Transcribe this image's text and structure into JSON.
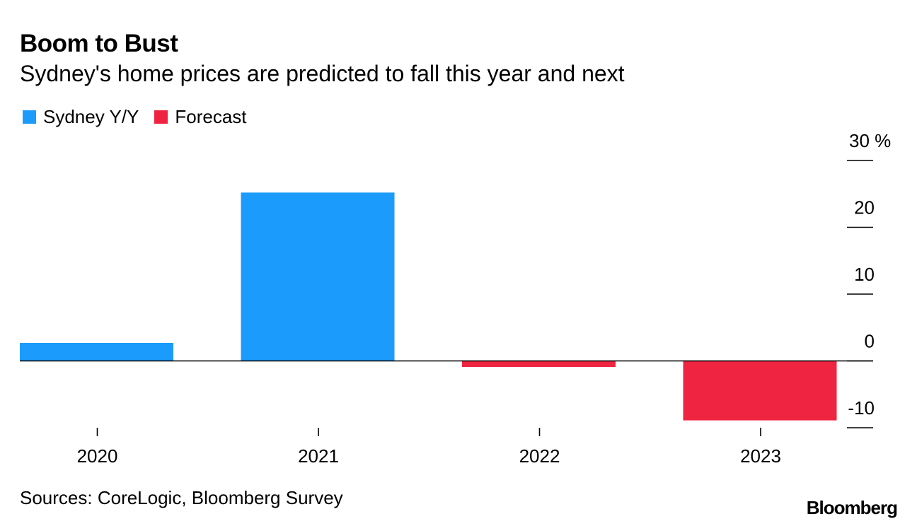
{
  "chart_data": {
    "type": "bar",
    "title": "Boom to Bust",
    "subtitle": "Sydney's home prices are predicted to fall this year and next",
    "categories": [
      "2020",
      "2021",
      "2022",
      "2023"
    ],
    "values": [
      2.7,
      25.2,
      -0.9,
      -8.9
    ],
    "bar_series": [
      "actual",
      "actual",
      "forecast",
      "forecast"
    ],
    "legend": [
      {
        "key": "actual",
        "label": "Sydney Y/Y",
        "color": "#1b9cfc"
      },
      {
        "key": "forecast",
        "label": "Forecast",
        "color": "#ee2440"
      }
    ],
    "legend_position": "top-left",
    "ylim": [
      -10,
      30
    ],
    "yticks": [
      30,
      20,
      10,
      0,
      -10
    ],
    "ytick_labels": [
      "30 %",
      "20",
      "10",
      "0",
      "-10"
    ],
    "y_axis_side": "right",
    "xlabel": "",
    "ylabel": "",
    "grid": false
  },
  "footer": {
    "source": "Sources: CoreLogic, Bloomberg Survey",
    "brand": "Bloomberg"
  }
}
